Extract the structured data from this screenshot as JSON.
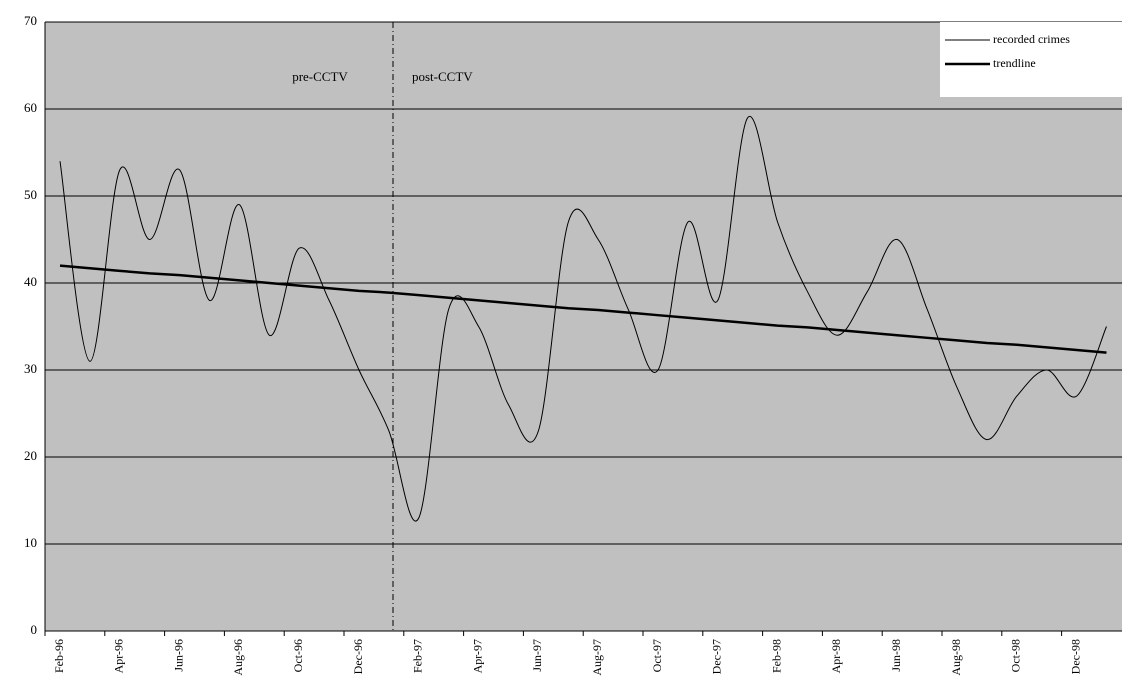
{
  "chart_data": {
    "type": "line",
    "categories": [
      "Feb-96",
      null,
      "Apr-96",
      null,
      "Jun-96",
      null,
      "Aug-96",
      null,
      "Oct-96",
      null,
      "Dec-96",
      null,
      "Feb-97",
      null,
      "Apr-97",
      null,
      "Jun-97",
      null,
      "Aug-97",
      null,
      "Oct-97",
      null,
      "Dec-97",
      null,
      "Feb-98",
      null,
      "Apr-98",
      null,
      "Jun-98",
      null,
      "Aug-98",
      null,
      "Oct-98",
      null,
      "Dec-98",
      null
    ],
    "series": [
      {
        "name": "recorded crimes",
        "color": "#000000",
        "width": 1,
        "values": [
          54,
          31,
          53,
          45,
          53,
          38,
          49,
          34,
          44,
          38,
          30,
          23,
          13,
          37,
          35,
          26,
          23,
          47,
          45,
          37,
          30,
          47,
          38,
          59,
          47,
          39,
          34,
          39,
          45,
          37,
          28,
          22,
          27,
          30,
          27,
          35
        ]
      },
      {
        "name": "trendline",
        "color": "#000000",
        "width": 2.5,
        "values": [
          42,
          41.7,
          41.4,
          41.1,
          40.9,
          40.6,
          40.3,
          40.0,
          39.7,
          39.4,
          39.1,
          38.9,
          38.6,
          38.3,
          38.0,
          37.7,
          37.4,
          37.1,
          36.9,
          36.6,
          36.3,
          36.0,
          35.7,
          35.4,
          35.1,
          34.9,
          34.6,
          34.3,
          34.0,
          33.7,
          33.4,
          33.1,
          32.9,
          32.6,
          32.3,
          32.0
        ]
      }
    ],
    "annotations": [
      "pre-CCTV",
      "post-CCTV"
    ],
    "ylim": [
      0,
      70
    ],
    "yticks": [
      0,
      10,
      20,
      30,
      40,
      50,
      60,
      70
    ],
    "grid": true,
    "plot_color": "#c0c0c0",
    "legend": "top-right"
  }
}
